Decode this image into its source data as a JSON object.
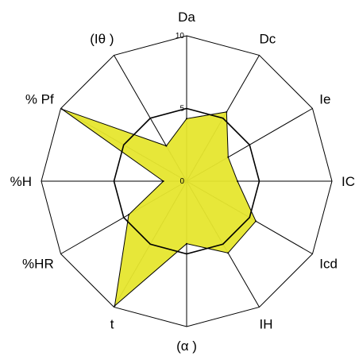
{
  "chart_data": {
    "type": "radar",
    "axes": [
      "Da",
      "Dc",
      "Ie",
      "IC",
      "Icd",
      "IH",
      "(α )",
      "t",
      "%HR",
      "%H",
      "% Pf",
      "(Iθ )"
    ],
    "series": [
      {
        "values": [
          4.3,
          5.5,
          3.3,
          3.5,
          5.5,
          5.7,
          4.3,
          9.9,
          4.6,
          1.6,
          9.9,
          2.8
        ]
      }
    ],
    "rlim": [
      0,
      10
    ],
    "ticks": [
      "0",
      "5",
      "10"
    ],
    "gridlines": [
      5,
      10
    ],
    "colors": {
      "fill": "#e6e62e",
      "stroke": "#000000"
    }
  }
}
